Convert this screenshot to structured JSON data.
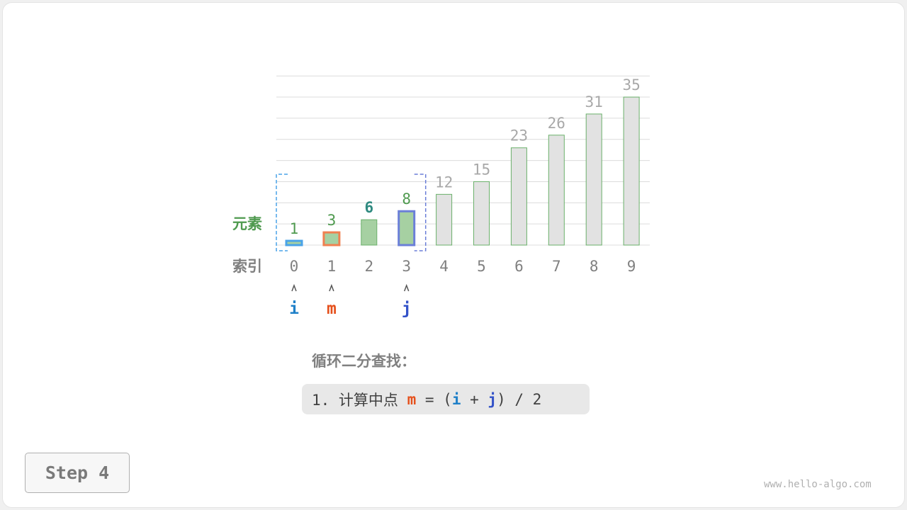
{
  "labels": {
    "elements": "元素",
    "index": "索引"
  },
  "array": [
    1,
    3,
    6,
    8,
    12,
    15,
    23,
    26,
    31,
    35
  ],
  "indices": [
    0,
    1,
    2,
    3,
    4,
    5,
    6,
    7,
    8,
    9
  ],
  "pointers": [
    {
      "name": "i",
      "index": 0,
      "color": "#1f80c8"
    },
    {
      "name": "m",
      "index": 1,
      "color": "#e5501c"
    },
    {
      "name": "j",
      "index": 3,
      "color": "#3352c8"
    }
  ],
  "search_range": [
    0,
    3
  ],
  "colors": {
    "active_fill": "#a6d0a2",
    "active_stroke": "#6ab06a",
    "inactive_fill": "#e2e2e2",
    "inactive_label": "#a8a8a8",
    "active_label": "#4f9a4f",
    "i": "#4aa3e8",
    "m": "#f08050",
    "j": "#6b7fd8"
  },
  "title": "循环二分查找：",
  "formula": {
    "prefix": "1. 计算中点 ",
    "m": "m",
    "eq": " = (",
    "i": "i",
    "plus": " + ",
    "j": "j",
    "suffix": ") / 2"
  },
  "step": "Step 4",
  "watermark": "www.hello-algo.com"
}
